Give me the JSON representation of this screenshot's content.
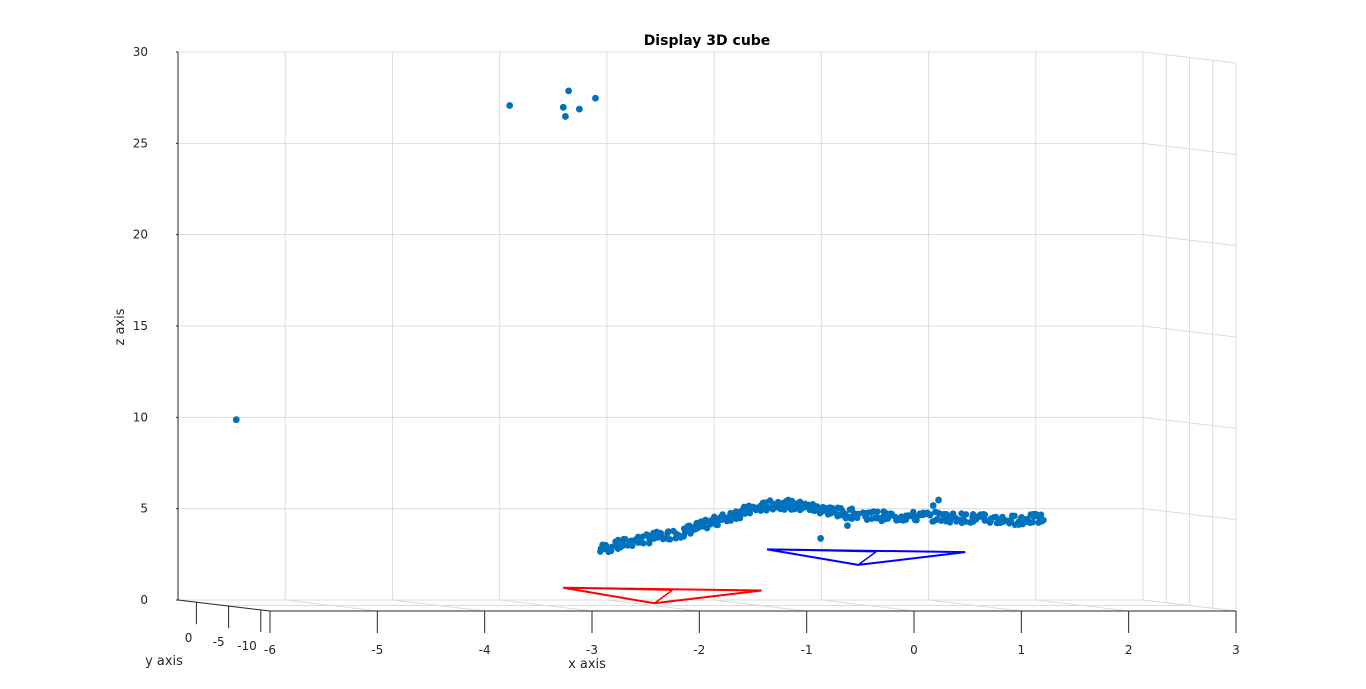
{
  "chart_data": {
    "type": "scatter",
    "title": "Display 3D cube",
    "xlabel": "x axis",
    "ylabel": "y axis",
    "zlabel": "z axis",
    "xlim": [
      -6,
      3
    ],
    "ylim": [
      -10,
      0
    ],
    "zlim": [
      0,
      30
    ],
    "xticks": [
      "-6",
      "-5",
      "-4",
      "-3",
      "-2",
      "-1",
      "0",
      "1",
      "2",
      "3"
    ],
    "yticks": [
      "0",
      "-5",
      "-10"
    ],
    "zticks": [
      "0",
      "5",
      "10",
      "15",
      "20",
      "25",
      "30"
    ],
    "grid": true,
    "colors": {
      "points": "#0072BD",
      "camera_1": "#FF0000",
      "camera_2": "#0000FF",
      "grid": "#dcdcdc",
      "axis": "#262626"
    },
    "points_isolated": [
      {
        "x": -3.0,
        "z": 27.4
      },
      {
        "x": -2.5,
        "z": 27.3
      },
      {
        "x": -2.45,
        "z": 28.2
      },
      {
        "x": -2.48,
        "z": 26.8
      },
      {
        "x": -2.35,
        "z": 27.2
      },
      {
        "x": -2.2,
        "z": 27.8
      },
      {
        "x": -5.55,
        "z": 10.2
      }
    ],
    "point_cloud_band": [
      {
        "x": -2.15,
        "z": 3.1
      },
      {
        "x": -1.8,
        "z": 3.6
      },
      {
        "x": -1.4,
        "z": 4.0
      },
      {
        "x": -1.1,
        "z": 4.6
      },
      {
        "x": -0.8,
        "z": 5.2
      },
      {
        "x": -0.5,
        "z": 5.6
      },
      {
        "x": -0.2,
        "z": 5.4
      },
      {
        "x": 0.1,
        "z": 5.1
      },
      {
        "x": 0.5,
        "z": 4.9
      },
      {
        "x": 0.9,
        "z": 4.9
      },
      {
        "x": 1.3,
        "z": 4.8
      },
      {
        "x": 1.7,
        "z": 4.7
      },
      {
        "x": 2.0,
        "z": 4.8
      }
    ],
    "points_extra": [
      {
        "x": -0.1,
        "z": 3.7
      },
      {
        "x": 0.15,
        "z": 4.4
      },
      {
        "x": 1.0,
        "z": 5.8
      },
      {
        "x": 0.95,
        "z": 5.5
      }
    ],
    "camera_1": [
      {
        "x": -2.5,
        "z": 1.0
      },
      {
        "x": -0.65,
        "z": 0.85
      },
      {
        "x": -1.65,
        "z": 0.15
      }
    ],
    "camera_2": [
      {
        "x": -0.6,
        "z": 3.1
      },
      {
        "x": 1.25,
        "z": 2.95
      },
      {
        "x": 0.25,
        "z": 2.25
      }
    ]
  }
}
